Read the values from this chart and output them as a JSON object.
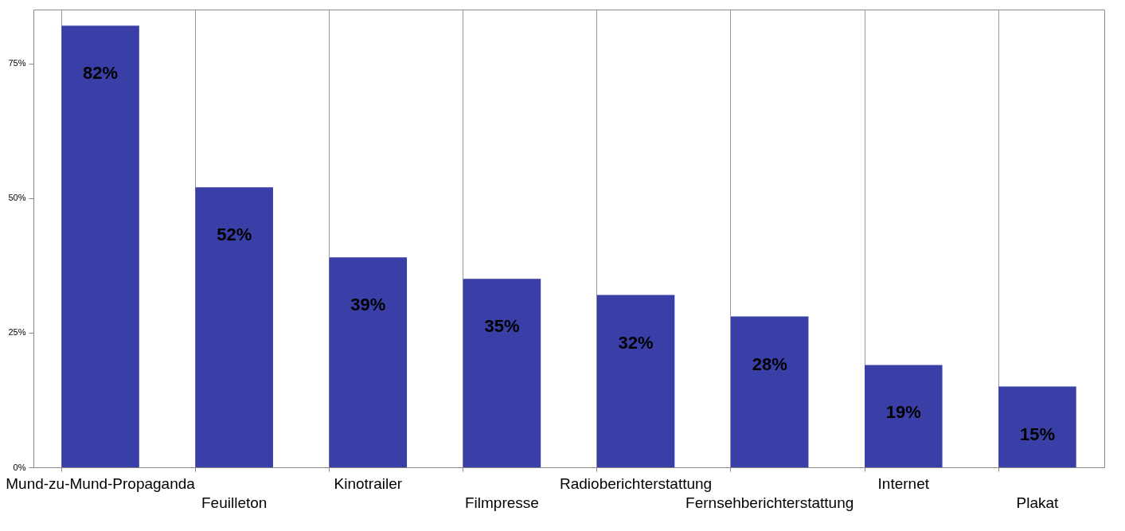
{
  "chart_data": {
    "type": "bar",
    "categories": [
      "Mund-zu-Mund-Propaganda",
      "Feuilleton",
      "Kinotrailer",
      "Filmpresse",
      "Radioberichterstattung",
      "Fernsehberichterstattung",
      "Internet",
      "Plakat"
    ],
    "values": [
      82,
      52,
      39,
      35,
      32,
      28,
      19,
      15
    ],
    "value_labels": [
      "82%",
      "52%",
      "39%",
      "35%",
      "32%",
      "28%",
      "19%",
      "15%"
    ],
    "color": "#3a3fa8",
    "ylim": [
      0,
      85
    ],
    "yticks": [
      {
        "value": 0,
        "label": "0%"
      },
      {
        "value": 25,
        "label": "25%"
      },
      {
        "value": 50,
        "label": "50%"
      },
      {
        "value": 75,
        "label": "75%"
      }
    ],
    "grid": "x"
  }
}
